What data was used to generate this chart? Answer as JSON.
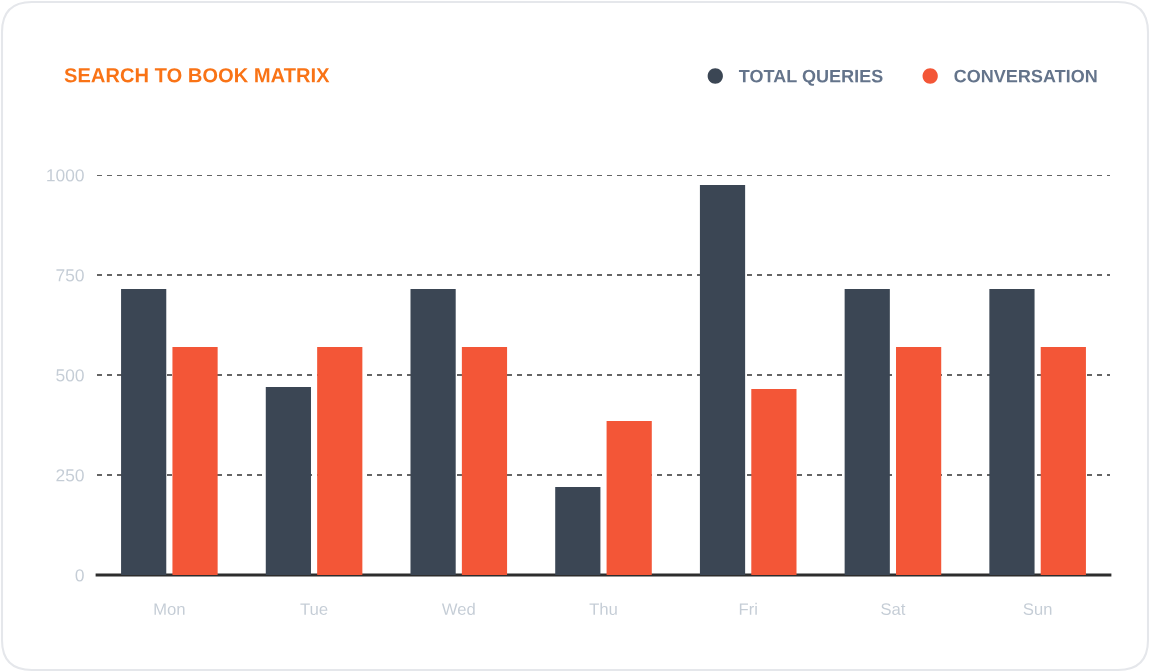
{
  "chart_data": {
    "type": "bar",
    "title": "SEARCH TO BOOK MATRIX",
    "categories": [
      "Mon",
      "Tue",
      "Wed",
      "Thu",
      "Fri",
      "Sat",
      "Sun"
    ],
    "series": [
      {
        "name": "TOTAL QUERIES",
        "color": "#3b4654",
        "values": [
          715,
          470,
          715,
          220,
          975,
          715,
          715
        ]
      },
      {
        "name": "CONVERSATION",
        "color": "#f35637",
        "values": [
          570,
          570,
          570,
          385,
          465,
          570,
          570
        ]
      }
    ],
    "ylim": [
      0,
      1000
    ],
    "yticks": [
      0,
      250,
      500,
      750,
      1000
    ],
    "grid": "y",
    "legend": "top right"
  }
}
